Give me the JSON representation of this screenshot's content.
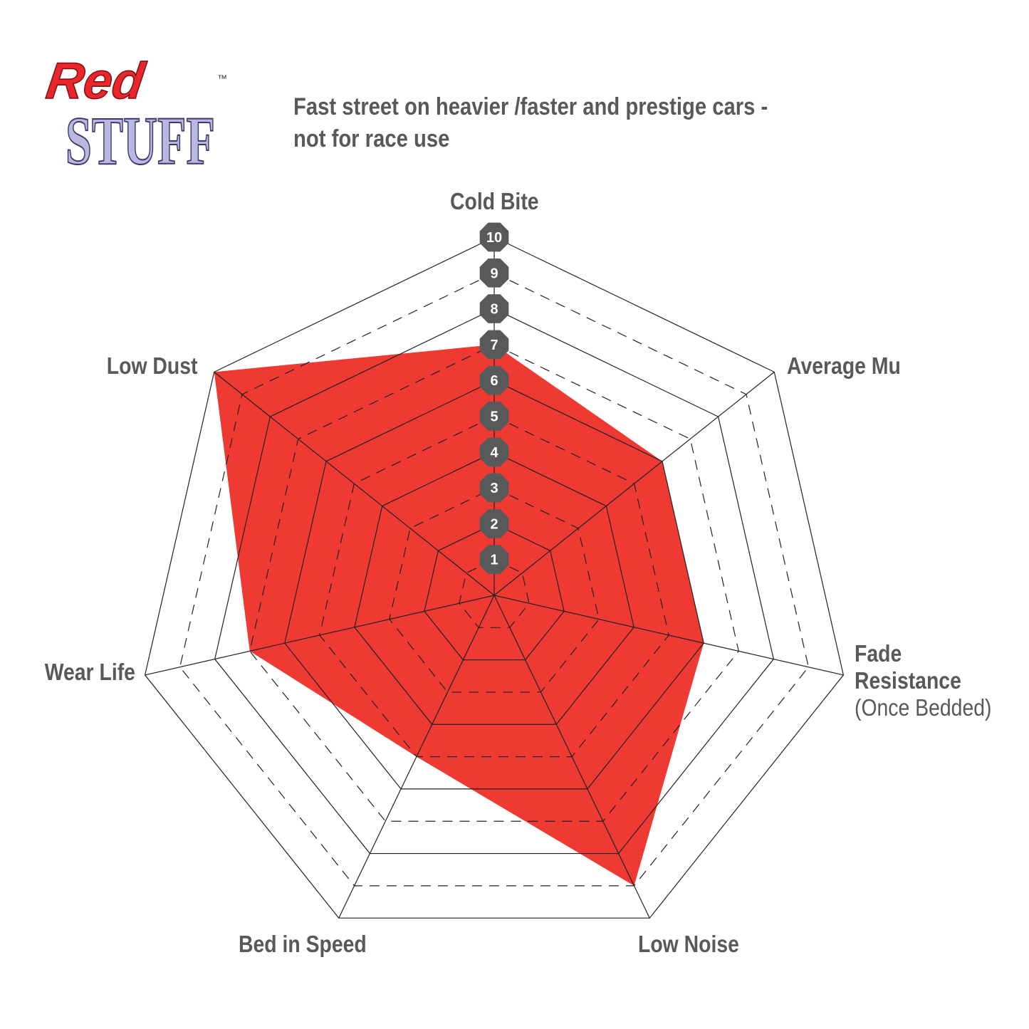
{
  "logo": {
    "line1": "Red",
    "line2": "STUFF",
    "tm": "™",
    "colors": {
      "red": "#e8262b",
      "lilac": "#b9b8e0"
    }
  },
  "title_lines": [
    "Fast street on heavier /faster and prestige cars -",
    "not for race use"
  ],
  "chart_data": {
    "type": "radar",
    "axes": [
      "Cold Bite",
      "Average Mu",
      "Fade Resistance (Once Bedded)",
      "Low Noise",
      "Bed in Speed",
      "Wear Life",
      "Low Dust"
    ],
    "axis_labels": {
      "cold_bite": "Cold Bite",
      "average_mu": "Average Mu",
      "fade_1": "Fade",
      "fade_2": "Resistance",
      "fade_3": "(Once Bedded)",
      "low_noise": "Low Noise",
      "bed_in_speed": "Bed in Speed",
      "wear_life": "Wear Life",
      "low_dust": "Low Dust"
    },
    "values": [
      7,
      6,
      6,
      9,
      5,
      7,
      10
    ],
    "range": [
      0,
      10
    ],
    "ticks": [
      "1",
      "2",
      "3",
      "4",
      "5",
      "6",
      "7",
      "8",
      "9",
      "10"
    ],
    "grid": "solid on even levels, dashed on odd levels",
    "fill_color": "#ee3a33",
    "badge_color": "#58595b"
  }
}
